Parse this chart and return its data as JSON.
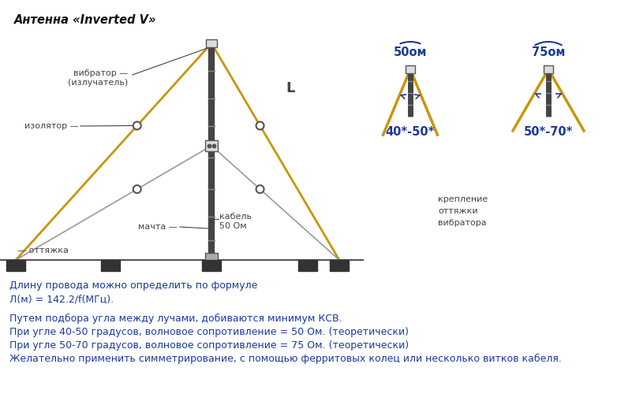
{
  "title": "Антенна «Inverted V»",
  "bg_color": "#ffffff",
  "wire_color": "#c8960a",
  "mast_color": "#444444",
  "guy_color": "#999999",
  "text_color_blue": "#1a3a9a",
  "text_color_dark": "#444444",
  "label_vibrator": "вибратор —\n(излучатель)",
  "label_izolyator": "изолятор —",
  "label_otyazhka": "— оттяжка",
  "label_mast": "мачта —",
  "label_kabel": "кабель\n50 Ом",
  "label_L": "L",
  "label_50om": "50ом",
  "label_75om": "75ом",
  "label_40_50": "40*-50*",
  "label_50_70": "50*-70*",
  "label_kreplenie": "крепление\nоттяжки\nвибратора",
  "text_line1": "Длину провода можно определить по формуле",
  "text_line2": "Л(м) = 142.2/f(МГц).",
  "text_line3": "Путем подбора угла между лучами, добиваются минимум КСВ.",
  "text_line4": "При угле 40-50 градусов, волновое сопротивление = 50 Ом. (теоретически)",
  "text_line5": "При угле 50-70 градусов, волновое сопротивление = 75 Ом. (теоретически)",
  "text_line6": "Желательно применить симметрирование, с помощью ферритовых колец или несколько витков кабеля."
}
